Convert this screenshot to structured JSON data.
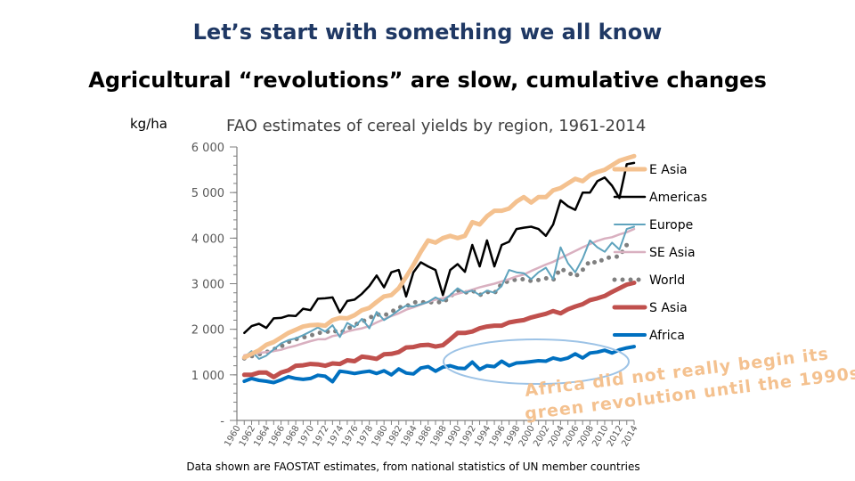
{
  "slide": {
    "title": "Let’s start with something we all know",
    "subtitle": "Agricultural “revolutions” are slow, cumulative changes",
    "source_note": "Data shown are FAOSTAT estimates, from national statistics of UN member countries",
    "annotation_line1": "Africa did not really begin its",
    "annotation_line2": "green revolution until the 1990s"
  },
  "chart_data": {
    "type": "line",
    "title": "FAO estimates of cereal yields by region, 1961-2014",
    "ylabel": "kg/ha",
    "ylim": [
      0,
      6000
    ],
    "y_ticks": [
      0,
      1000,
      2000,
      3000,
      4000,
      5000,
      6000
    ],
    "y_tick_labels": [
      "-",
      "1 000",
      "2 000",
      "3 000",
      "4 000",
      "5 000",
      "6 000"
    ],
    "x_tick_labels": [
      "1960",
      "1962",
      "1964",
      "1966",
      "1968",
      "1970",
      "1972",
      "1974",
      "1976",
      "1978",
      "1980",
      "1982",
      "1984",
      "1986",
      "1988",
      "1990",
      "1992",
      "1994",
      "1996",
      "1998",
      "2000",
      "2002",
      "2004",
      "2006",
      "2008",
      "2010",
      "2012",
      "2014"
    ],
    "x_start": 1961,
    "x_end": 2014,
    "grid": false,
    "legend_position": "right",
    "series": [
      {
        "name": "E Asia",
        "color": "#f4c18f",
        "style": "solid",
        "width": 5,
        "values": [
          1380,
          1460,
          1540,
          1660,
          1720,
          1820,
          1920,
          1990,
          2060,
          2090,
          2100,
          2080,
          2200,
          2250,
          2240,
          2310,
          2420,
          2470,
          2600,
          2720,
          2750,
          2900,
          3150,
          3410,
          3700,
          3950,
          3900,
          4000,
          4050,
          4000,
          4050,
          4350,
          4300,
          4480,
          4600,
          4600,
          4650,
          4800,
          4900,
          4780,
          4900,
          4900,
          5050,
          5100,
          5200,
          5300,
          5250,
          5380,
          5450,
          5500,
          5600,
          5700,
          5750,
          5800
        ]
      },
      {
        "name": "Americas",
        "color": "#000000",
        "style": "solid",
        "width": 2.5,
        "values": [
          1920,
          2070,
          2120,
          2030,
          2240,
          2250,
          2300,
          2290,
          2450,
          2420,
          2670,
          2680,
          2700,
          2370,
          2620,
          2650,
          2780,
          2950,
          3180,
          2920,
          3250,
          3300,
          2720,
          3250,
          3470,
          3380,
          3300,
          2750,
          3300,
          3430,
          3260,
          3850,
          3380,
          3950,
          3380,
          3850,
          3920,
          4200,
          4230,
          4250,
          4200,
          4050,
          4300,
          4830,
          4700,
          4620,
          5000,
          5000,
          5250,
          5330,
          5150,
          4880,
          5620,
          5650
        ]
      },
      {
        "name": "Europe",
        "color": "#5fa3bd",
        "style": "solid",
        "width": 2,
        "values": [
          1390,
          1520,
          1350,
          1420,
          1560,
          1690,
          1760,
          1800,
          1870,
          1950,
          2040,
          1950,
          2090,
          1830,
          2140,
          2050,
          2230,
          2020,
          2380,
          2200,
          2300,
          2420,
          2520,
          2500,
          2550,
          2600,
          2700,
          2620,
          2750,
          2900,
          2800,
          2850,
          2750,
          2850,
          2800,
          2950,
          3300,
          3250,
          3230,
          3100,
          3250,
          3350,
          3100,
          3800,
          3450,
          3250,
          3550,
          3950,
          3800,
          3700,
          3900,
          3750,
          4200,
          4250
        ]
      },
      {
        "name": "SE Asia",
        "color": "#d9b0c0",
        "style": "solid",
        "width": 2.5,
        "values": [
          1430,
          1460,
          1480,
          1500,
          1520,
          1550,
          1600,
          1640,
          1690,
          1740,
          1780,
          1780,
          1850,
          1880,
          1950,
          1990,
          2020,
          2070,
          2150,
          2220,
          2290,
          2350,
          2430,
          2480,
          2540,
          2600,
          2650,
          2680,
          2730,
          2780,
          2820,
          2870,
          2920,
          2960,
          3000,
          3050,
          3100,
          3160,
          3200,
          3280,
          3350,
          3420,
          3480,
          3560,
          3640,
          3720,
          3800,
          3870,
          3940,
          3990,
          4020,
          4080,
          4130,
          4200
        ]
      },
      {
        "name": "World",
        "color": "#7f7f7f",
        "style": "dotted",
        "width": 5,
        "values": [
          1360,
          1410,
          1450,
          1500,
          1560,
          1620,
          1720,
          1780,
          1820,
          1860,
          1920,
          1930,
          1980,
          1920,
          2000,
          2100,
          2160,
          2250,
          2330,
          2300,
          2380,
          2480,
          2500,
          2590,
          2600,
          2580,
          2610,
          2580,
          2720,
          2850,
          2800,
          2850,
          2750,
          2820,
          2790,
          3000,
          3060,
          3090,
          3100,
          3060,
          3080,
          3120,
          3080,
          3330,
          3250,
          3150,
          3300,
          3500,
          3450,
          3560,
          3580,
          3600,
          3850,
          3900
        ]
      },
      {
        "name": "S Asia",
        "color": "#c0504d",
        "style": "solid",
        "width": 5,
        "values": [
          1000,
          1000,
          1050,
          1050,
          950,
          1050,
          1100,
          1200,
          1210,
          1240,
          1230,
          1200,
          1250,
          1240,
          1320,
          1300,
          1400,
          1380,
          1350,
          1450,
          1460,
          1500,
          1600,
          1610,
          1650,
          1660,
          1620,
          1650,
          1780,
          1920,
          1920,
          1950,
          2020,
          2060,
          2080,
          2080,
          2150,
          2180,
          2200,
          2260,
          2300,
          2340,
          2400,
          2350,
          2440,
          2500,
          2550,
          2640,
          2680,
          2730,
          2820,
          2900,
          2980,
          3020
        ]
      },
      {
        "name": "Africa",
        "color": "#0070c0",
        "style": "solid",
        "width": 4,
        "values": [
          860,
          920,
          880,
          860,
          830,
          890,
          960,
          920,
          900,
          920,
          990,
          970,
          850,
          1080,
          1060,
          1030,
          1060,
          1080,
          1030,
          1090,
          1000,
          1130,
          1040,
          1020,
          1150,
          1180,
          1080,
          1170,
          1200,
          1150,
          1140,
          1280,
          1120,
          1200,
          1180,
          1300,
          1200,
          1260,
          1270,
          1290,
          1310,
          1300,
          1370,
          1330,
          1370,
          1460,
          1370,
          1480,
          1500,
          1540,
          1480,
          1550,
          1590,
          1620
        ]
      }
    ]
  }
}
